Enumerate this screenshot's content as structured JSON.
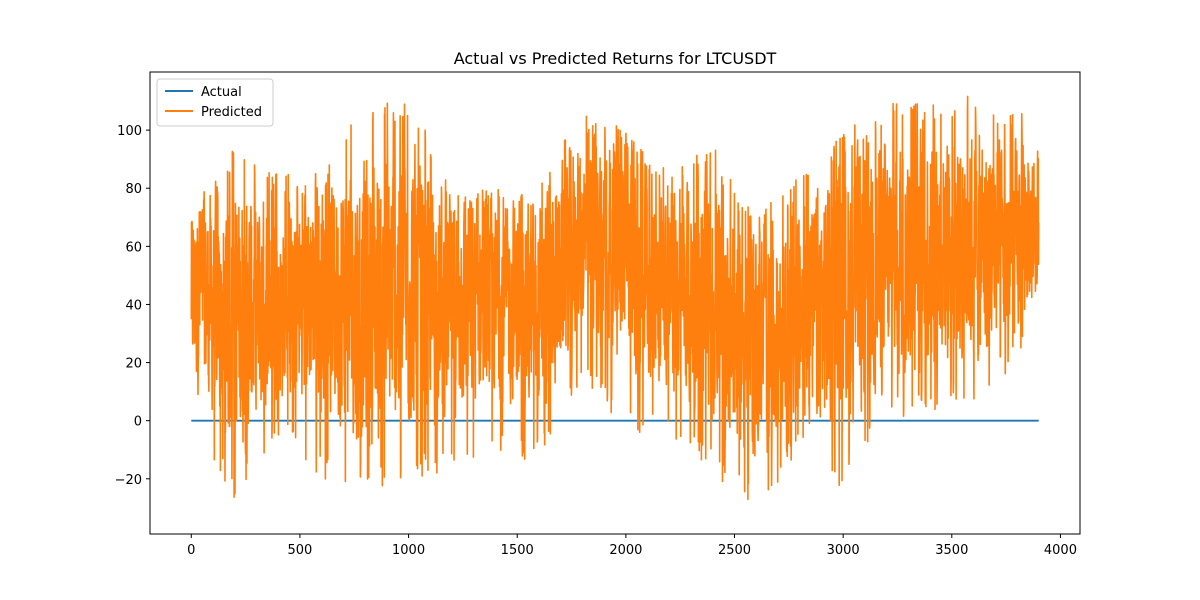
{
  "chart_data": {
    "type": "line",
    "title": "Actual vs Predicted Returns for LTCUSDT",
    "xlabel": "",
    "ylabel": "",
    "xlim": [
      -190,
      4090
    ],
    "ylim": [
      -39,
      120
    ],
    "x_ticks": [
      0,
      500,
      1000,
      1500,
      2000,
      2500,
      3000,
      3500,
      4000
    ],
    "y_ticks": [
      -20,
      0,
      20,
      40,
      60,
      80,
      100
    ],
    "grid": false,
    "legend": "top-left",
    "n_points": 3900,
    "series": [
      {
        "name": "Actual",
        "color": "#1f77b4",
        "x": [
          0,
          3900
        ],
        "y": [
          0,
          0
        ]
      },
      {
        "name": "Predicted",
        "color": "#ff7f0e",
        "x": [
          0,
          200,
          400,
          600,
          800,
          1000,
          1200,
          1400,
          1600,
          1800,
          2000,
          2200,
          2400,
          2600,
          2800,
          3000,
          3200,
          3400,
          3600,
          3800,
          3900
        ],
        "y": [
          45,
          35,
          40,
          45,
          40,
          45,
          40,
          42,
          38,
          65,
          60,
          45,
          42,
          25,
          35,
          45,
          55,
          60,
          60,
          60,
          70
        ],
        "range_high": [
          72,
          95,
          85,
          85,
          110,
          110,
          85,
          80,
          85,
          108,
          100,
          85,
          95,
          70,
          85,
          100,
          110,
          110,
          112,
          108,
          108
        ],
        "range_low": [
          -5,
          -27,
          -5,
          -20,
          -26,
          -20,
          -17,
          -10,
          -15,
          15,
          -5,
          -5,
          -18,
          -32,
          -10,
          -25,
          0,
          2,
          5,
          20,
          45
        ]
      }
    ]
  }
}
